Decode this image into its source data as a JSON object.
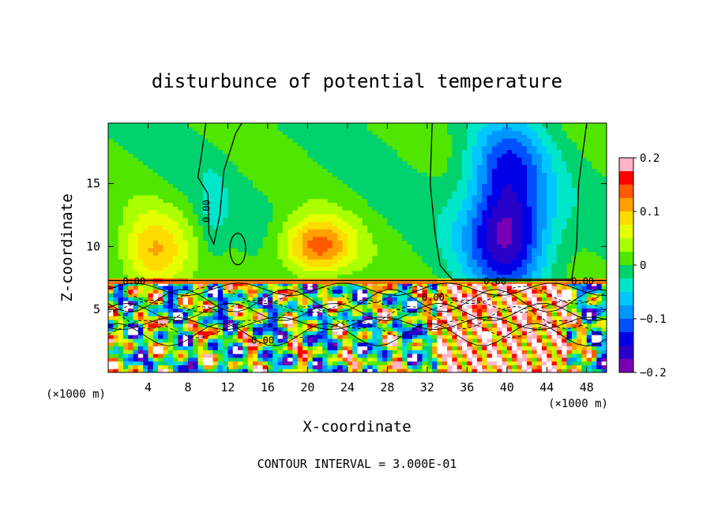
{
  "chart_data": {
    "type": "heatmap",
    "title": "disturbunce of potential temperature",
    "xlabel": "X-coordinate",
    "ylabel": "Z-coordinate",
    "x_unit_note": "(×1000 m)",
    "x_unit_note_right": "(×1000 m)",
    "xlim": [
      0,
      50
    ],
    "ylim": [
      0,
      19.8
    ],
    "xticks": [
      4,
      8,
      12,
      16,
      20,
      24,
      28,
      32,
      36,
      40,
      44,
      48
    ],
    "yticks": [
      5,
      10,
      15
    ],
    "footer": "CONTOUR INTERVAL = 3.000E-01",
    "colorbar": {
      "range": [
        -0.2,
        0.2
      ],
      "ticks": [
        {
          "value": 0.2,
          "label": "0.2"
        },
        {
          "value": 0.1,
          "label": "0.1"
        },
        {
          "value": 0.0,
          "label": "0"
        },
        {
          "value": -0.1,
          "label": "−0.1"
        },
        {
          "value": -0.2,
          "label": "−0.2"
        }
      ],
      "colors": [
        "#ffb4c8",
        "#ff0000",
        "#ff5a00",
        "#ffa000",
        "#ffdc00",
        "#e6ff00",
        "#aaff00",
        "#50e600",
        "#00d26e",
        "#00e6c8",
        "#00c8ff",
        "#0096ff",
        "#0050ff",
        "#0000e6",
        "#2800c8",
        "#7800b4"
      ]
    },
    "contour_labels": [
      {
        "text": "0.00",
        "x": 10.2,
        "z": 12.8,
        "rotate": -90
      },
      {
        "text": "0.00",
        "x": 2.6,
        "z": 7.0,
        "rotate": 0
      },
      {
        "text": "0.00",
        "x": 15.5,
        "z": 2.3,
        "rotate": 0
      },
      {
        "text": "0.00",
        "x": 32.6,
        "z": 5.7,
        "rotate": 0
      },
      {
        "text": "0.00",
        "x": 38.8,
        "z": 7.0,
        "rotate": 0
      },
      {
        "text": "0.00",
        "x": 47.6,
        "z": 7.0,
        "rotate": 0
      }
    ],
    "field_features": [
      {
        "kind": "warm",
        "x": 21.0,
        "z": 10.0,
        "amp": 0.14,
        "sx": 3.6,
        "sz": 2.3
      },
      {
        "kind": "warm",
        "x": 4.5,
        "z": 9.5,
        "amp": 0.1,
        "sx": 3.4,
        "sz": 3.2
      },
      {
        "kind": "cold",
        "x": 40.0,
        "z": 11.2,
        "amp": -0.19,
        "sx": 4.2,
        "sz": 4.6
      },
      {
        "kind": "cold",
        "x": 40.0,
        "z": 17.0,
        "amp": -0.09,
        "sx": 3.8,
        "sz": 3.2
      },
      {
        "kind": "cold",
        "x": 10.5,
        "z": 12.5,
        "amp": -0.03,
        "sx": 1.5,
        "sz": 4.0
      }
    ]
  }
}
